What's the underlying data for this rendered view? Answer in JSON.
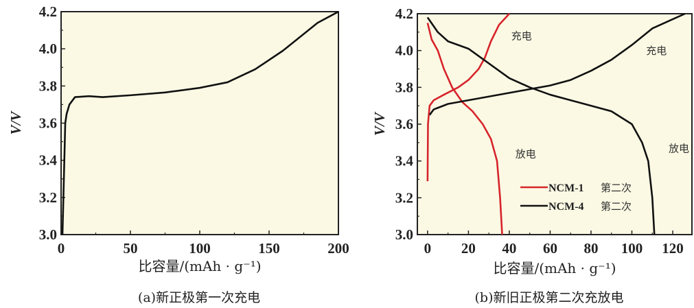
{
  "chart_data": [
    {
      "type": "line",
      "caption": "(a)新正极第一次充电",
      "xlabel": "比容量/(mAh · g⁻¹)",
      "ylabel": "V/V",
      "xlim": [
        0,
        200
      ],
      "ylim": [
        3.0,
        4.2
      ],
      "xticks": [
        0,
        50,
        100,
        150,
        200
      ],
      "yticks": [
        "3.0",
        "3.2",
        "3.4",
        "3.6",
        "3.8",
        "4.0",
        "4.2"
      ],
      "background": "#fbf9e4",
      "series": [
        {
          "name": "charge",
          "color": "#111111",
          "points": [
            [
              1,
              3.0
            ],
            [
              2,
              3.3
            ],
            [
              3,
              3.6
            ],
            [
              4,
              3.65
            ],
            [
              6,
              3.7
            ],
            [
              10,
              3.74
            ],
            [
              20,
              3.745
            ],
            [
              30,
              3.74
            ],
            [
              50,
              3.75
            ],
            [
              75,
              3.765
            ],
            [
              100,
              3.79
            ],
            [
              120,
              3.82
            ],
            [
              140,
              3.89
            ],
            [
              160,
              3.99
            ],
            [
              175,
              4.08
            ],
            [
              185,
              4.14
            ],
            [
              200,
              4.2
            ]
          ]
        }
      ]
    },
    {
      "type": "line",
      "caption": "(b)新旧正极第二次充放电",
      "xlabel": "比容量/(mAh · g⁻¹)",
      "ylabel": "V/V",
      "xlim": [
        -5,
        129.4
      ],
      "ylim": [
        3.0,
        4.2
      ],
      "xticks": [
        0,
        20,
        40,
        60,
        80,
        100,
        120
      ],
      "yticks": [
        "3.0",
        "3.2",
        "3.4",
        "3.6",
        "3.8",
        "4.0",
        "4.2"
      ],
      "background": "#fbf9e4",
      "legend": {
        "placement": "bottom-right",
        "entries": [
          {
            "label": "NCM-1",
            "suffix": "第二次",
            "color": "#d7242b"
          },
          {
            "label": "NCM-4",
            "suffix": "第二次",
            "color": "#111111"
          }
        ]
      },
      "annotations": [
        {
          "text": "充电",
          "x": 46,
          "y": 4.06
        },
        {
          "text": "充电",
          "x": 112,
          "y": 3.98
        },
        {
          "text": "放电",
          "x": 48,
          "y": 3.42
        },
        {
          "text": "放电",
          "x": 123,
          "y": 3.45
        }
      ],
      "series": [
        {
          "name": "NCM-1 charge",
          "color": "#d7242b",
          "points": [
            [
              0,
              3.29
            ],
            [
              0.2,
              3.6
            ],
            [
              1,
              3.7
            ],
            [
              3,
              3.73
            ],
            [
              8,
              3.76
            ],
            [
              15,
              3.8
            ],
            [
              20,
              3.84
            ],
            [
              25,
              3.9
            ],
            [
              28,
              3.96
            ],
            [
              31,
              4.05
            ],
            [
              35,
              4.14
            ],
            [
              40,
              4.2
            ]
          ]
        },
        {
          "name": "NCM-1 discharge",
          "color": "#d7242b",
          "points": [
            [
              0,
              4.15
            ],
            [
              2,
              4.06
            ],
            [
              5,
              4.0
            ],
            [
              8,
              3.9
            ],
            [
              12,
              3.8
            ],
            [
              17,
              3.72
            ],
            [
              22,
              3.67
            ],
            [
              27,
              3.6
            ],
            [
              31,
              3.52
            ],
            [
              34,
              3.4
            ],
            [
              35.5,
              3.2
            ],
            [
              36.5,
              3.0
            ]
          ]
        },
        {
          "name": "NCM-4 charge",
          "color": "#111111",
          "points": [
            [
              1,
              3.65
            ],
            [
              3,
              3.68
            ],
            [
              10,
              3.71
            ],
            [
              30,
              3.75
            ],
            [
              50,
              3.79
            ],
            [
              60,
              3.81
            ],
            [
              70,
              3.84
            ],
            [
              80,
              3.89
            ],
            [
              90,
              3.95
            ],
            [
              100,
              4.03
            ],
            [
              110,
              4.12
            ],
            [
              118,
              4.16
            ],
            [
              126,
              4.2
            ]
          ]
        },
        {
          "name": "NCM-4 discharge",
          "color": "#111111",
          "points": [
            [
              0,
              4.18
            ],
            [
              5,
              4.1
            ],
            [
              10,
              4.05
            ],
            [
              20,
              4.01
            ],
            [
              30,
              3.93
            ],
            [
              40,
              3.85
            ],
            [
              50,
              3.8
            ],
            [
              60,
              3.76
            ],
            [
              70,
              3.73
            ],
            [
              80,
              3.7
            ],
            [
              90,
              3.67
            ],
            [
              100,
              3.6
            ],
            [
              105,
              3.5
            ],
            [
              108,
              3.4
            ],
            [
              110,
              3.2
            ],
            [
              111,
              3.0
            ]
          ]
        }
      ]
    }
  ]
}
